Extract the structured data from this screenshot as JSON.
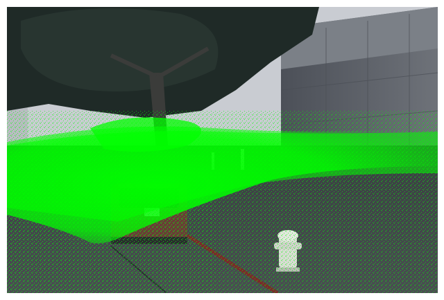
{
  "scene": {
    "kind": "street photo with lidar point-cloud overlay",
    "overlay": {
      "color": "#00ff00",
      "label_visible": false
    },
    "colors": {
      "sky": "#c9ccd2",
      "tree_canopy": "#1f2a27",
      "building_wall": "#5d6168",
      "sidewalk": "#3a3d42",
      "car": "#6a3d36",
      "hydrant": "#d9dcd4",
      "curb_red": "#7a2a2a"
    }
  }
}
